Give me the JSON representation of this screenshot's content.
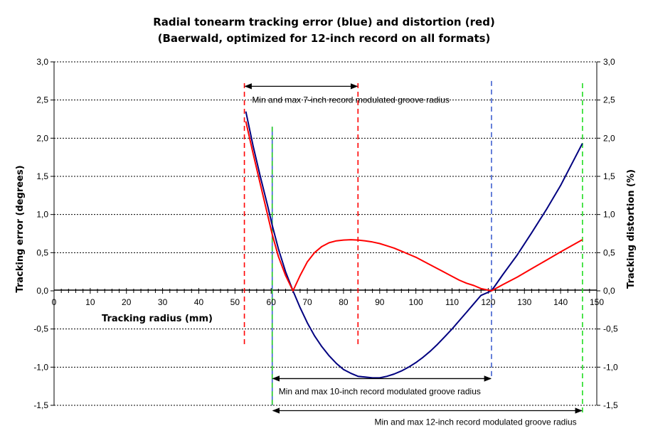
{
  "title": "Radial tonearm tracking error (blue) and distortion (red)",
  "subtitle": "(Baerwald, optimized for 12-inch record on all formats)",
  "chart_data": {
    "type": "line",
    "title": "Radial tonearm tracking error (blue) and distortion (red)",
    "subtitle": "(Baerwald, optimized for 12-inch record on all formats)",
    "xlabel": "Tracking radius (mm)",
    "ylabel": "Tracking error (degrees)",
    "y2label": "Tracking distortion (%)",
    "xlim": [
      0,
      150
    ],
    "ylim": [
      -1.5,
      3.0
    ],
    "y2lim": [
      -1.5,
      3.0
    ],
    "x_ticks": [
      0,
      10,
      20,
      30,
      40,
      50,
      60,
      70,
      80,
      90,
      100,
      110,
      120,
      130,
      140,
      150
    ],
    "x_tick_labels": [
      "0",
      "10",
      "20",
      "30",
      "40",
      "50",
      "60",
      "70",
      "80",
      "90",
      "100",
      "110",
      "120",
      "130",
      "140",
      "150"
    ],
    "y_ticks": [
      -1.5,
      -1.0,
      -0.5,
      0.0,
      0.5,
      1.0,
      1.5,
      2.0,
      2.5,
      3.0
    ],
    "y_tick_labels": [
      "-1,5",
      "-1,0",
      "-0,5",
      "0,0",
      "0,5",
      "1,0",
      "1,5",
      "2,0",
      "2,5",
      "3,0"
    ],
    "grid": "horizontal",
    "series": [
      {
        "color": "#000080",
        "x": [
          53,
          55,
          57,
          59,
          60.3,
          62,
          64,
          66.04,
          68,
          70,
          72,
          74,
          76,
          78,
          80,
          82,
          84,
          86,
          88,
          90,
          92,
          94,
          96,
          98,
          100,
          102,
          104,
          106,
          108,
          110,
          112,
          114,
          116,
          118,
          120.9,
          124,
          128,
          132,
          136,
          140,
          146
        ],
        "values": [
          2.35,
          1.9,
          1.5,
          1.12,
          0.86,
          0.55,
          0.25,
          0.0,
          -0.22,
          -0.42,
          -0.59,
          -0.73,
          -0.85,
          -0.95,
          -1.03,
          -1.08,
          -1.12,
          -1.13,
          -1.14,
          -1.14,
          -1.12,
          -1.09,
          -1.05,
          -1.0,
          -0.94,
          -0.87,
          -0.79,
          -0.7,
          -0.6,
          -0.5,
          -0.39,
          -0.28,
          -0.17,
          -0.06,
          0.0,
          0.21,
          0.47,
          0.76,
          1.06,
          1.38,
          1.93
        ]
      },
      {
        "color": "#ff0000",
        "x": [
          53,
          55,
          57,
          59,
          60.3,
          62,
          64,
          66.04,
          68,
          70,
          72,
          74,
          76,
          78,
          80,
          82,
          84,
          86,
          88,
          90,
          92,
          94,
          96,
          98,
          100,
          102,
          104,
          106,
          108,
          110,
          112,
          114,
          116,
          118,
          120.9,
          124,
          128,
          132,
          136,
          140,
          146
        ],
        "values": [
          2.22,
          1.8,
          1.4,
          1.0,
          0.74,
          0.45,
          0.2,
          0.0,
          0.2,
          0.38,
          0.5,
          0.58,
          0.63,
          0.655,
          0.665,
          0.67,
          0.665,
          0.655,
          0.64,
          0.62,
          0.59,
          0.56,
          0.52,
          0.48,
          0.44,
          0.39,
          0.34,
          0.29,
          0.24,
          0.19,
          0.14,
          0.1,
          0.07,
          0.03,
          0.0,
          0.08,
          0.18,
          0.29,
          0.4,
          0.51,
          0.67
        ]
      }
    ],
    "vertical_markers": [
      {
        "x": 52.6,
        "y_range": [
          -0.72,
          2.72
        ],
        "color": "#ff0000",
        "style": "dashed"
      },
      {
        "x": 84,
        "y_range": [
          -0.72,
          2.72
        ],
        "color": "#ff0000",
        "style": "dashed"
      },
      {
        "x": 60.3,
        "y_range": [
          -1.5,
          2.15
        ],
        "color": "#3a62d0",
        "style": "solid"
      },
      {
        "x": 60.3,
        "y_range": [
          -1.5,
          2.15
        ],
        "color": "#22cc22",
        "style": "dashed"
      },
      {
        "x": 120.9,
        "y_range": [
          -1.15,
          2.75
        ],
        "color": "#4060d0",
        "style": "dashed"
      },
      {
        "x": 146.05,
        "y_range": [
          -1.64,
          2.72
        ],
        "color": "#22dd22",
        "style": "dashed"
      }
    ],
    "annotations": [
      {
        "text": "Min and max 7-inch record modulated groove radius",
        "x_range": [
          52.6,
          84
        ],
        "y": 2.68,
        "label_x": 82,
        "label_y": 2.5
      },
      {
        "text": "Min and max 10-inch record modulated groove radius",
        "x_range": [
          60.3,
          120.9
        ],
        "y": -1.15,
        "label_x": 90,
        "label_y": -1.32
      },
      {
        "text": "Min and max 12-inch record modulated groove radius",
        "x_range": [
          60.3,
          146.05
        ],
        "y": -1.57,
        "label_x": 116.5,
        "label_y": -1.72
      }
    ]
  }
}
